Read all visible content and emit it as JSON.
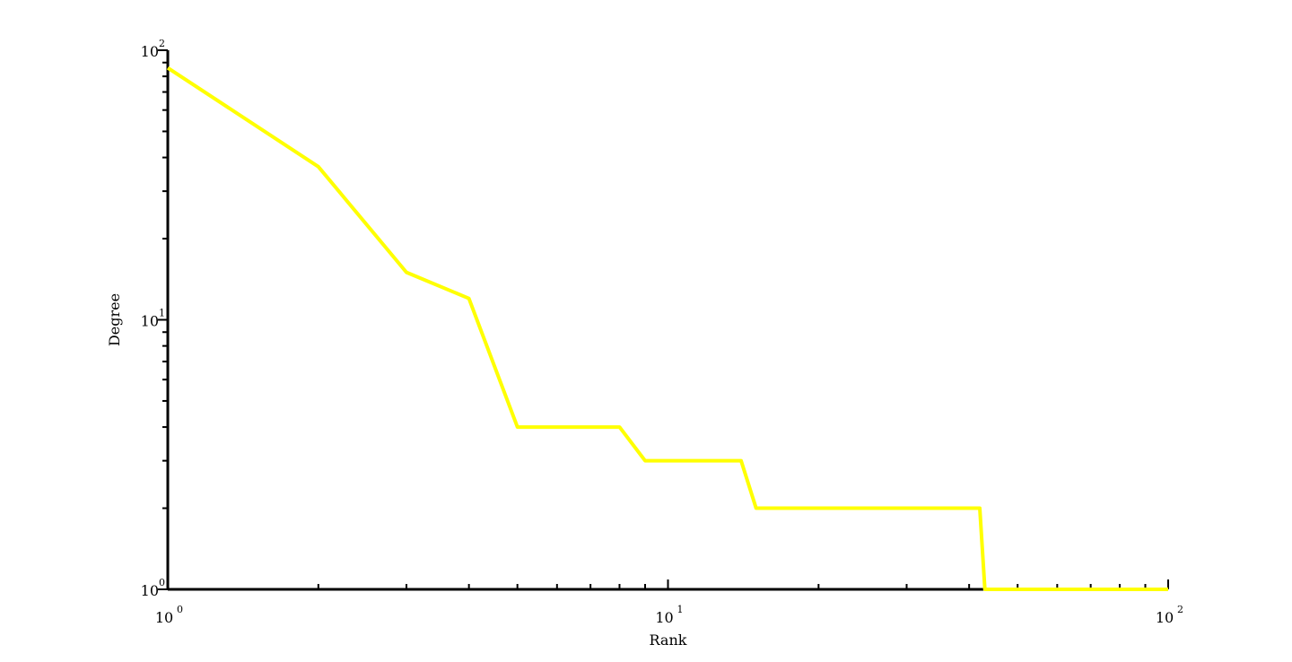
{
  "chart_data": {
    "type": "line",
    "title": "",
    "xlabel": "Rank",
    "ylabel": "Degree",
    "xscale": "log",
    "yscale": "log",
    "xlim": [
      1,
      100
    ],
    "ylim": [
      1,
      100
    ],
    "grid": false,
    "legend": "none",
    "x_ticks": [
      {
        "value": 1,
        "base": "10",
        "exp": "0"
      },
      {
        "value": 10,
        "base": "10",
        "exp": "1"
      },
      {
        "value": 100,
        "base": "10",
        "exp": "2"
      }
    ],
    "y_ticks": [
      {
        "value": 1,
        "base": "10",
        "exp": "0"
      },
      {
        "value": 10,
        "base": "10",
        "exp": "1"
      },
      {
        "value": 100,
        "base": "10",
        "exp": "2"
      }
    ],
    "series": [
      {
        "color": "#ffff00",
        "x": [
          1,
          2,
          3,
          4,
          5,
          8,
          9,
          14,
          15,
          42,
          43,
          100
        ],
        "y": [
          86,
          37,
          15,
          12,
          4,
          4,
          3,
          3,
          2,
          2,
          1,
          1
        ]
      }
    ]
  }
}
